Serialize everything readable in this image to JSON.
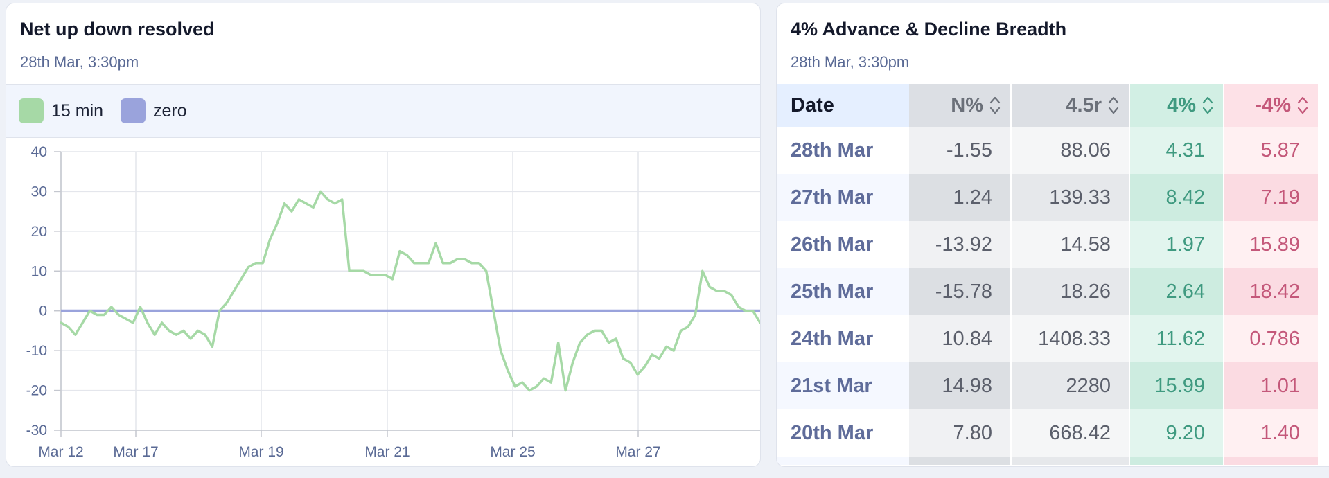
{
  "chart_card": {
    "title": "Net up down resolved",
    "subtitle": "28th Mar, 3:30pm",
    "legend": [
      {
        "label": "15 min",
        "color": "#a6d9a6"
      },
      {
        "label": "zero",
        "color": "#9aa3dc"
      }
    ]
  },
  "chart_data": {
    "type": "line",
    "x_tick_labels": [
      "Mar 12",
      "Mar 17",
      "Mar 19",
      "Mar 21",
      "Mar 25",
      "Mar 27"
    ],
    "yticks": [
      40,
      30,
      20,
      10,
      0,
      -10,
      -20,
      -30
    ],
    "ylim": [
      -30,
      40
    ],
    "grid": true,
    "series": [
      {
        "name": "15 min",
        "color": "#a6d9a6",
        "values": [
          -3,
          -4,
          -6,
          -3,
          0,
          -1,
          -1,
          1,
          -1,
          -2,
          -3,
          1,
          -3,
          -6,
          -3,
          -5,
          -6,
          -5,
          -7,
          -5,
          -6,
          -9,
          0,
          2,
          5,
          8,
          11,
          12,
          12,
          18,
          22,
          27,
          25,
          28,
          27,
          26,
          30,
          28,
          27,
          28,
          10,
          10,
          10,
          9,
          9,
          9,
          8,
          15,
          14,
          12,
          12,
          12,
          17,
          12,
          12,
          13,
          13,
          12,
          12,
          10,
          0,
          -10,
          -15,
          -19,
          -18,
          -20,
          -19,
          -17,
          -18,
          -8,
          -20,
          -13,
          -8,
          -6,
          -5,
          -5,
          -8,
          -7,
          -12,
          -13,
          -16,
          -14,
          -11,
          -12,
          -9,
          -10,
          -5,
          -4,
          -1,
          10,
          6,
          5,
          5,
          4,
          1,
          0,
          0,
          -3
        ]
      },
      {
        "name": "zero",
        "color": "#9aa3dc",
        "values": [
          0,
          0
        ]
      }
    ]
  },
  "table_card": {
    "title": "4% Advance & Decline Breadth",
    "subtitle": "28th Mar, 3:30pm",
    "columns": [
      "Date",
      "N%",
      "4.5r",
      "4%",
      "-4%"
    ],
    "rows": [
      [
        "28th Mar",
        "-1.55",
        "88.06",
        "4.31",
        "5.87"
      ],
      [
        "27th Mar",
        "1.24",
        "139.33",
        "8.42",
        "7.19"
      ],
      [
        "26th Mar",
        "-13.92",
        "14.58",
        "1.97",
        "15.89"
      ],
      [
        "25th Mar",
        "-15.78",
        "18.26",
        "2.64",
        "18.42"
      ],
      [
        "24th Mar",
        "10.84",
        "1408.33",
        "11.62",
        "0.786"
      ],
      [
        "21st Mar",
        "14.98",
        "2280",
        "15.99",
        "1.01"
      ],
      [
        "20th Mar",
        "7.80",
        "668.42",
        "9.20",
        "1.40"
      ]
    ]
  },
  "colors": {
    "positive": "#3f9a80",
    "negative": "#c4587a",
    "neutral": "#5b5f6b",
    "date": "#5f6c9a"
  }
}
